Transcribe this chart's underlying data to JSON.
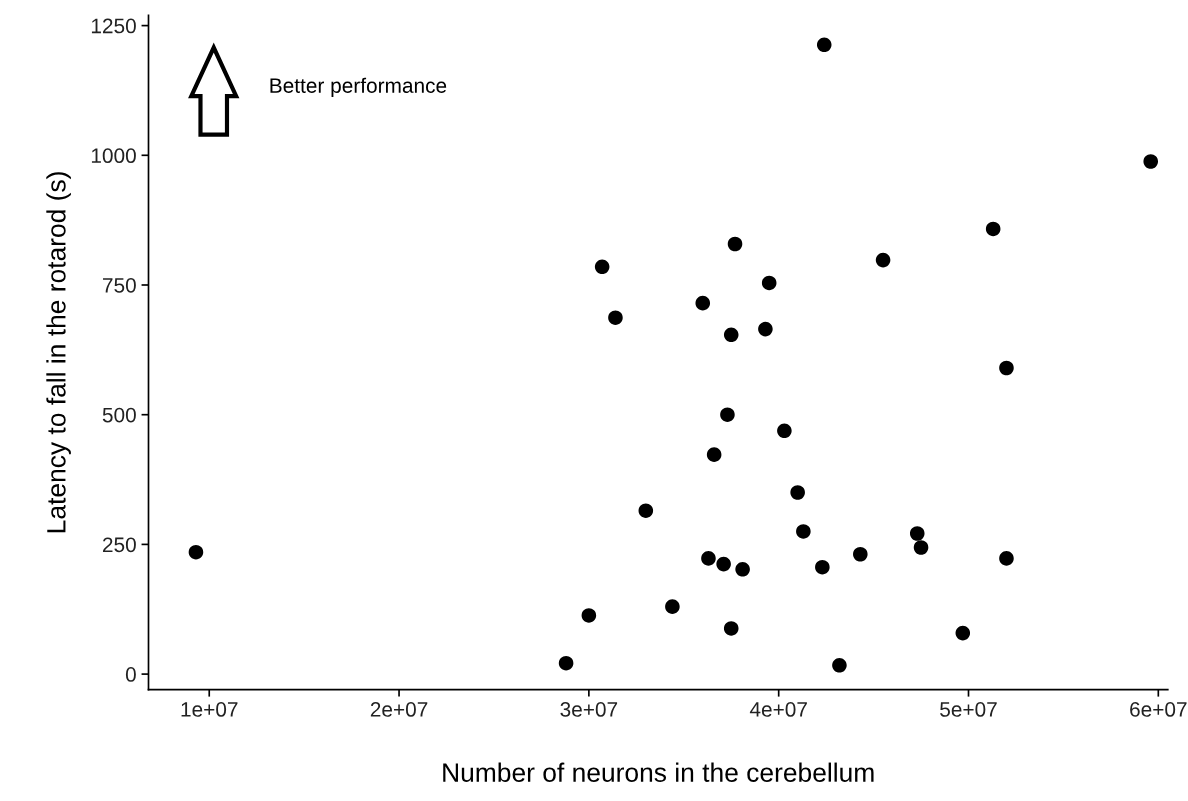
{
  "chart_data": {
    "type": "scatter",
    "xlabel": "Number of neurons in the cerebellum",
    "ylabel": "Latency to fall in the rotarod (s)",
    "annotations": [
      "Better performance"
    ],
    "x": [
      9300000.0,
      28800000.0,
      30000000.0,
      30700000.0,
      31400000.0,
      33000000.0,
      34400000.0,
      36000000.0,
      36300000.0,
      36600000.0,
      37100000.0,
      37300000.0,
      37500000.0,
      37500000.0,
      37700000.0,
      38100000.0,
      39300000.0,
      39500000.0,
      40300000.0,
      41000000.0,
      41300000.0,
      42300000.0,
      42400000.0,
      43200000.0,
      44300000.0,
      45500000.0,
      47300000.0,
      47500000.0,
      49700000.0,
      51300000.0,
      52000000.0,
      52000000.0,
      59600000.0
    ],
    "values": [
      235,
      21,
      113,
      785,
      687,
      315,
      130,
      715,
      223,
      423,
      212,
      500,
      88,
      654,
      829,
      202,
      665,
      754,
      469,
      350,
      275,
      206,
      1213,
      17,
      231,
      798,
      271,
      244,
      79,
      858,
      590,
      223,
      988
    ],
    "color": "#000000",
    "marker": "circle",
    "grid": false,
    "xlim": [
      6800000.0,
      60500000.0
    ],
    "xticks": [
      {
        "value": 10000000.0,
        "label": "1e+07"
      },
      {
        "value": 20000000.0,
        "label": "2e+07"
      },
      {
        "value": 30000000.0,
        "label": "3e+07"
      },
      {
        "value": 40000000.0,
        "label": "4e+07"
      },
      {
        "value": 50000000.0,
        "label": "5e+07"
      },
      {
        "value": 60000000.0,
        "label": "6e+07"
      }
    ],
    "ylim": [
      -30,
      1270
    ],
    "yticks": [
      0,
      250,
      500,
      750,
      1000,
      1250
    ]
  }
}
